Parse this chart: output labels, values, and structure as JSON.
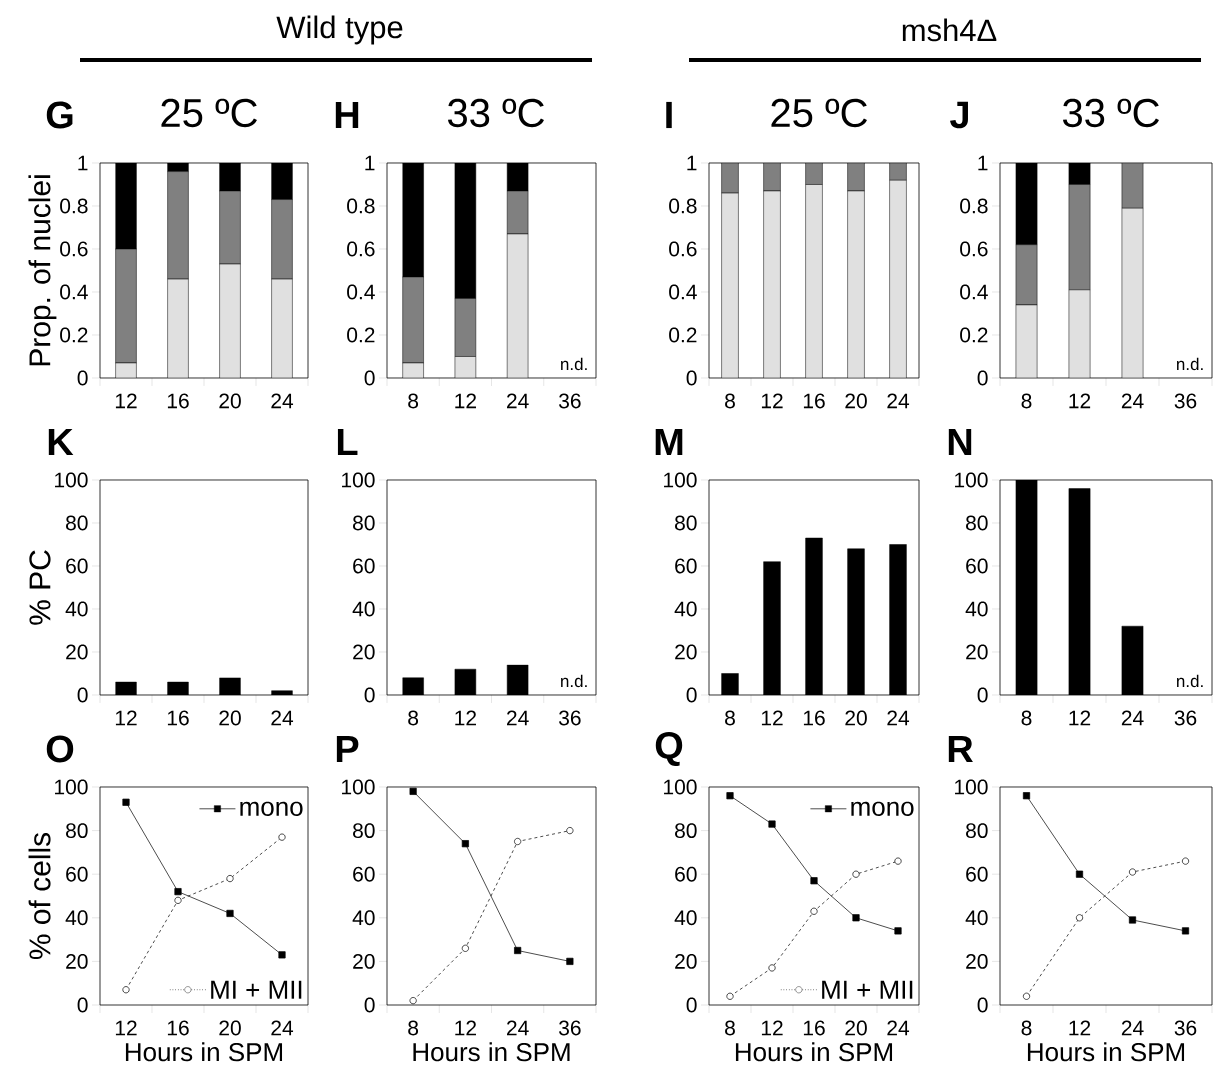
{
  "chart_data": [
    {
      "type": "bar",
      "stacked": true,
      "title": "25 ºC",
      "subtitle": "Wild type",
      "ylabel": "Prop. of nuclei",
      "annotations": [
        "G"
      ],
      "categories": [
        "12",
        "16",
        "20",
        "24"
      ],
      "ylim": [
        0,
        1
      ],
      "yticks": [
        0,
        0.2,
        0.4,
        0.6,
        0.8,
        1
      ],
      "series": [
        {
          "color": "#e0e0e0",
          "values": [
            0.07,
            0.46,
            0.53,
            0.46
          ]
        },
        {
          "color": "#808080",
          "values": [
            0.53,
            0.5,
            0.34,
            0.37
          ]
        },
        {
          "color": "#000000",
          "values": [
            0.4,
            0.04,
            0.13,
            0.17
          ]
        }
      ]
    },
    {
      "type": "bar",
      "stacked": true,
      "title": "33 ºC",
      "annotations": [
        "H",
        "n.d."
      ],
      "categories": [
        "8",
        "12",
        "24",
        "36"
      ],
      "ylim": [
        0,
        1
      ],
      "yticks": [
        0,
        0.2,
        0.4,
        0.6,
        0.8,
        1
      ],
      "series": [
        {
          "color": "#e0e0e0",
          "values": [
            0.07,
            0.1,
            0.67,
            null
          ]
        },
        {
          "color": "#808080",
          "values": [
            0.4,
            0.27,
            0.2,
            null
          ]
        },
        {
          "color": "#000000",
          "values": [
            0.53,
            0.63,
            0.13,
            null
          ]
        }
      ]
    },
    {
      "type": "bar",
      "stacked": true,
      "title": "25 ºC",
      "subtitle": "msh4Δ",
      "annotations": [
        "I"
      ],
      "categories": [
        "8",
        "12",
        "16",
        "20",
        "24"
      ],
      "ylim": [
        0,
        1
      ],
      "yticks": [
        0,
        0.2,
        0.4,
        0.6,
        0.8,
        1
      ],
      "series": [
        {
          "color": "#e0e0e0",
          "values": [
            0.86,
            0.87,
            0.9,
            0.87,
            0.92
          ]
        },
        {
          "color": "#808080",
          "values": [
            0.14,
            0.13,
            0.1,
            0.13,
            0.08
          ]
        }
      ]
    },
    {
      "type": "bar",
      "stacked": true,
      "title": "33 ºC",
      "annotations": [
        "J",
        "n.d."
      ],
      "categories": [
        "8",
        "12",
        "24",
        "36"
      ],
      "ylim": [
        0,
        1
      ],
      "yticks": [
        0,
        0.2,
        0.4,
        0.6,
        0.8,
        1
      ],
      "series": [
        {
          "color": "#e0e0e0",
          "values": [
            0.34,
            0.41,
            0.79,
            null
          ]
        },
        {
          "color": "#808080",
          "values": [
            0.28,
            0.49,
            0.21,
            null
          ]
        },
        {
          "color": "#000000",
          "values": [
            0.38,
            0.1,
            0,
            null
          ]
        }
      ]
    },
    {
      "type": "bar",
      "ylabel": "% PC",
      "annotations": [
        "K"
      ],
      "categories": [
        "12",
        "16",
        "20",
        "24"
      ],
      "ylim": [
        0,
        100
      ],
      "yticks": [
        0,
        20,
        40,
        60,
        80,
        100
      ],
      "color": "#000000",
      "values": [
        6,
        6,
        8,
        2
      ]
    },
    {
      "type": "bar",
      "annotations": [
        "L",
        "n.d."
      ],
      "categories": [
        "8",
        "12",
        "24",
        "36"
      ],
      "ylim": [
        0,
        100
      ],
      "yticks": [
        0,
        20,
        40,
        60,
        80,
        100
      ],
      "color": "#000000",
      "values": [
        8,
        12,
        14,
        null
      ]
    },
    {
      "type": "bar",
      "annotations": [
        "M"
      ],
      "categories": [
        "8",
        "12",
        "16",
        "20",
        "24"
      ],
      "ylim": [
        0,
        100
      ],
      "yticks": [
        0,
        20,
        40,
        60,
        80,
        100
      ],
      "color": "#000000",
      "values": [
        10,
        62,
        73,
        68,
        70
      ]
    },
    {
      "type": "bar",
      "annotations": [
        "N",
        "n.d."
      ],
      "categories": [
        "8",
        "12",
        "24",
        "36"
      ],
      "ylim": [
        0,
        100
      ],
      "yticks": [
        0,
        20,
        40,
        60,
        80,
        100
      ],
      "color": "#000000",
      "values": [
        100,
        96,
        32,
        null
      ]
    },
    {
      "type": "line",
      "ylabel": "% of cells",
      "xlabel": "Hours in SPM",
      "legend": "right",
      "annotations": [
        "O"
      ],
      "categories": [
        "12",
        "16",
        "20",
        "24"
      ],
      "ylim": [
        0,
        100
      ],
      "yticks": [
        0,
        20,
        40,
        60,
        80,
        100
      ],
      "series": [
        {
          "name": "mono",
          "color": "#000000",
          "marker": "square",
          "line_style": "solid",
          "values": [
            93,
            52,
            42,
            23
          ]
        },
        {
          "name": "MI + MII",
          "color": "#000000",
          "marker": "circle",
          "line_style": "dashed",
          "values": [
            7,
            48,
            58,
            77
          ]
        }
      ]
    },
    {
      "type": "line",
      "xlabel": "Hours in SPM",
      "annotations": [
        "P"
      ],
      "categories": [
        "8",
        "12",
        "24",
        "36"
      ],
      "ylim": [
        0,
        100
      ],
      "yticks": [
        0,
        20,
        40,
        60,
        80,
        100
      ],
      "series": [
        {
          "color": "#000000",
          "marker": "square",
          "line_style": "solid",
          "values": [
            98,
            74,
            25,
            20
          ]
        },
        {
          "color": "#000000",
          "marker": "circle",
          "line_style": "dashed",
          "values": [
            2,
            26,
            75,
            80
          ]
        }
      ]
    },
    {
      "type": "line",
      "xlabel": "Hours in SPM",
      "legend": "right",
      "annotations": [
        "Q"
      ],
      "categories": [
        "8",
        "12",
        "16",
        "20",
        "24"
      ],
      "ylim": [
        0,
        100
      ],
      "yticks": [
        0,
        20,
        40,
        60,
        80,
        100
      ],
      "series": [
        {
          "name": "mono",
          "color": "#000000",
          "marker": "square",
          "line_style": "solid",
          "values": [
            96,
            83,
            57,
            40,
            34
          ]
        },
        {
          "name": "MI + MII",
          "color": "#000000",
          "marker": "circle",
          "line_style": "dashed",
          "values": [
            4,
            17,
            43,
            60,
            66
          ]
        }
      ]
    },
    {
      "type": "line",
      "xlabel": "Hours in SPM",
      "annotations": [
        "R"
      ],
      "categories": [
        "8",
        "12",
        "24",
        "36"
      ],
      "ylim": [
        0,
        100
      ],
      "yticks": [
        0,
        20,
        40,
        60,
        80,
        100
      ],
      "series": [
        {
          "color": "#000000",
          "marker": "square",
          "line_style": "solid",
          "values": [
            96,
            60,
            39,
            34
          ]
        },
        {
          "color": "#000000",
          "marker": "circle",
          "line_style": "dashed",
          "values": [
            4,
            40,
            61,
            66
          ]
        }
      ]
    }
  ]
}
